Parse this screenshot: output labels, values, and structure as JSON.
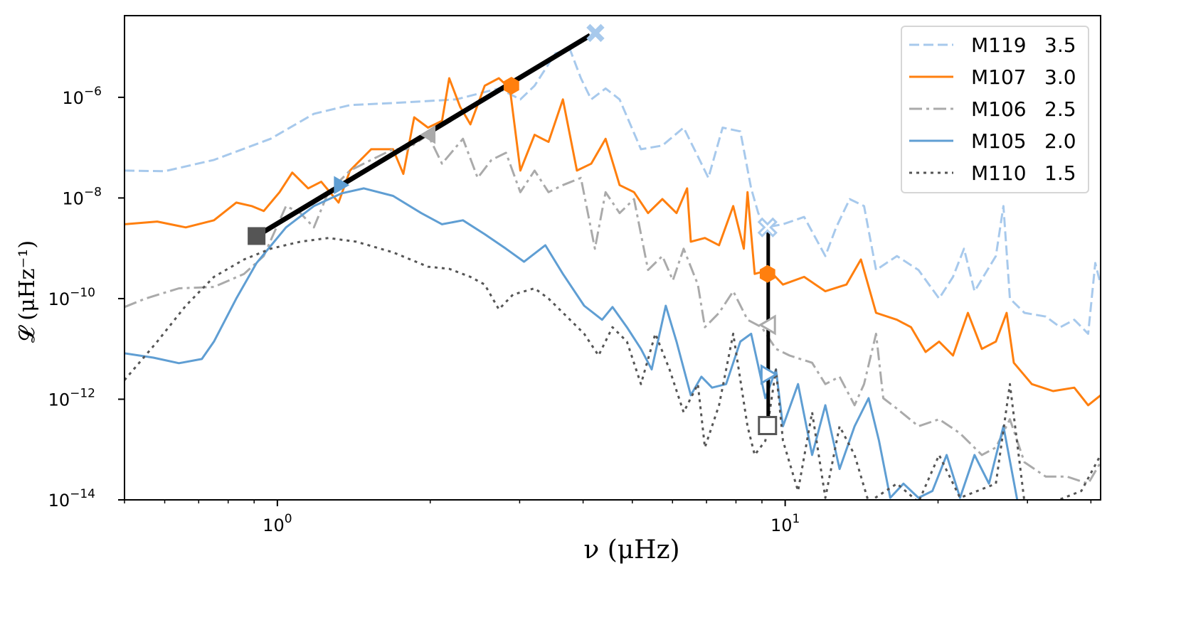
{
  "chart_data": {
    "type": "line",
    "xlabel": "ν (μHz)",
    "ylabel": "𝓛 (μHz⁻¹)",
    "xscale": "log",
    "yscale": "log",
    "xlim": [
      0.5,
      41.8
    ],
    "ylim": [
      1e-14,
      4.2e-05
    ],
    "x_ticks": [
      {
        "value": 1,
        "label": "10",
        "exp": "0"
      },
      {
        "value": 10,
        "label": "10",
        "exp": "1"
      }
    ],
    "y_ticks": [
      {
        "value": 1e-06,
        "label": "10",
        "exp": "−6"
      },
      {
        "value": 1e-08,
        "label": "10",
        "exp": "−8"
      },
      {
        "value": 1e-10,
        "label": "10",
        "exp": "−10"
      },
      {
        "value": 1e-12,
        "label": "10",
        "exp": "−12"
      },
      {
        "value": 1e-14,
        "label": "10",
        "exp": "−14"
      }
    ],
    "grid": false,
    "legend_position": "top-right",
    "series": [
      {
        "name": "M119",
        "value_label": "3.5",
        "color": "#a7c9ec",
        "style": "dashed",
        "x": [
          0.5,
          0.6,
          0.75,
          0.97,
          1.18,
          1.39,
          1.69,
          2.25,
          2.73,
          3.01,
          3.21,
          3.53,
          3.77,
          3.96,
          4.15,
          4.43,
          4.72,
          5.2,
          5.73,
          6.31,
          6.73,
          7.06,
          7.53,
          8.16,
          8.57,
          8.85,
          9.14,
          9.9,
          10.9,
          12.0,
          12.6,
          13.4,
          14.3,
          15.1,
          16.6,
          18.3,
          20.1,
          21.4,
          22.5,
          23.6,
          26.0,
          26.9,
          27.7,
          29.6,
          32.6,
          34.8,
          37.1,
          39.5,
          40.8,
          41.8
        ],
        "y": [
          3.5e-08,
          3.4e-08,
          5.7e-08,
          1.5e-07,
          4.7e-07,
          7e-07,
          7.7e-07,
          9.1e-07,
          1.5e-06,
          9.1e-07,
          1.7e-06,
          7.5e-06,
          8.9e-06,
          2.4e-06,
          9.1e-07,
          1.5e-06,
          9.1e-07,
          9.3e-08,
          1.1e-07,
          2.5e-07,
          6.7e-08,
          2.5e-08,
          2.5e-07,
          2.1e-07,
          1.55e-08,
          5e-09,
          2.6e-09,
          3e-09,
          4.2e-09,
          7e-10,
          2.6e-09,
          9.5e-09,
          6.9e-09,
          3.7e-10,
          7e-10,
          3.7e-10,
          1e-10,
          2.7e-10,
          9.8e-10,
          1.4e-10,
          7e-10,
          6.9e-09,
          1e-10,
          5.2e-11,
          4.4e-11,
          2.7e-11,
          3.8e-11,
          2e-11,
          5.1e-10,
          1.9e-10
        ]
      },
      {
        "name": "M107",
        "value_label": "3.0",
        "color": "#ff7f0e",
        "style": "solid",
        "x": [
          0.5,
          0.58,
          0.66,
          0.75,
          0.83,
          0.89,
          0.94,
          1.01,
          1.07,
          1.15,
          1.22,
          1.32,
          1.39,
          1.53,
          1.69,
          1.77,
          1.86,
          1.98,
          2.11,
          2.18,
          2.29,
          2.4,
          2.56,
          2.73,
          2.87,
          3.01,
          3.21,
          3.42,
          3.65,
          3.89,
          4.15,
          4.43,
          4.72,
          5.04,
          5.37,
          5.73,
          6.11,
          6.41,
          6.52,
          6.95,
          7.41,
          7.9,
          8.29,
          8.43,
          8.71,
          9.29,
          9.9,
          10.9,
          12.0,
          13.2,
          14.1,
          15.1,
          16.6,
          17.7,
          18.9,
          20.1,
          21.4,
          22.9,
          24.4,
          26.0,
          27.3,
          28.2,
          30.6,
          33.7,
          37.1,
          39.5,
          41.8
        ],
        "y": [
          3e-09,
          3.4e-09,
          2.6e-09,
          3.6e-09,
          8.1e-09,
          6.9e-09,
          5.5e-09,
          1.3e-08,
          3.2e-08,
          1.55e-08,
          2.1e-08,
          8.1e-09,
          3.5e-08,
          9.3e-08,
          9.3e-08,
          3e-08,
          4e-07,
          2.5e-07,
          3.4e-07,
          2.4e-06,
          6.5e-07,
          2.9e-07,
          1.7e-06,
          2.4e-06,
          1.5e-06,
          3.5e-08,
          1.8e-07,
          1.3e-07,
          9.1e-07,
          3.5e-08,
          4.8e-08,
          1.5e-07,
          1.8e-08,
          1.3e-08,
          5e-09,
          9.5e-09,
          5e-09,
          1.55e-08,
          1.35e-09,
          1.6e-09,
          1.15e-09,
          6.9e-09,
          9.8e-10,
          1.3e-08,
          3.1e-10,
          3.7e-10,
          1.9e-10,
          2.7e-10,
          1.4e-10,
          1.9e-10,
          6e-10,
          5.2e-11,
          3.8e-11,
          2.7e-11,
          8.7e-12,
          1.4e-11,
          7.4e-12,
          5.2e-11,
          1e-11,
          1.4e-11,
          5.2e-11,
          5.3e-12,
          2e-12,
          1.45e-12,
          1.7e-12,
          7.6e-13,
          1.2e-12
        ]
      },
      {
        "name": "M106",
        "value_label": "2.5",
        "color": "#aaaaaa",
        "style": "dashdot",
        "x": [
          0.5,
          0.55,
          0.64,
          0.75,
          0.86,
          0.94,
          1.04,
          1.11,
          1.18,
          1.26,
          1.39,
          1.53,
          1.69,
          1.8,
          1.98,
          2.11,
          2.32,
          2.48,
          2.64,
          2.82,
          3.01,
          3.21,
          3.42,
          3.65,
          3.96,
          4.22,
          4.43,
          4.72,
          5.04,
          5.37,
          5.73,
          6.01,
          6.31,
          6.73,
          6.95,
          7.41,
          7.9,
          8.43,
          8.99,
          9.59,
          10.2,
          11.3,
          12.0,
          12.8,
          13.7,
          14.3,
          15.1,
          15.6,
          16.6,
          18.3,
          20.1,
          22.1,
          24.4,
          26.0,
          27.7,
          29.6,
          32.6,
          35.9,
          39.5,
          41.8
        ],
        "y": [
          6.8e-11,
          1e-10,
          1.6e-10,
          1.7e-10,
          3.1e-10,
          7e-10,
          6.9e-09,
          5e-09,
          2.6e-09,
          1.3e-08,
          3.5e-08,
          5.7e-08,
          9.3e-08,
          9.3e-08,
          1.8e-07,
          4.8e-08,
          1.5e-07,
          2.5e-08,
          5.7e-08,
          7.9e-08,
          1.3e-08,
          3.5e-08,
          1.3e-08,
          1.8e-08,
          2.5e-08,
          9.8e-10,
          1.3e-08,
          5e-09,
          9.5e-09,
          3.7e-10,
          7e-10,
          2.3e-10,
          9.8e-10,
          1.9e-10,
          2.7e-11,
          5.2e-11,
          1.4e-10,
          3.8e-11,
          2.7e-11,
          1e-11,
          7.4e-12,
          5.3e-12,
          2e-12,
          2.8e-12,
          7.6e-13,
          2e-12,
          2e-11,
          1.05e-12,
          6.5e-13,
          2.9e-13,
          4e-13,
          2.1e-13,
          7.8e-14,
          1.1e-13,
          4e-13,
          5.6e-14,
          2.9e-14,
          2.9e-14,
          2.1e-14,
          5.6e-14
        ]
      },
      {
        "name": "M105",
        "value_label": "2.0",
        "color": "#5f9ed3",
        "style": "solid",
        "x": [
          0.5,
          0.57,
          0.64,
          0.71,
          0.75,
          0.83,
          0.91,
          1.04,
          1.18,
          1.34,
          1.48,
          1.69,
          1.92,
          2.11,
          2.32,
          2.56,
          2.82,
          3.06,
          3.37,
          3.65,
          4.02,
          4.36,
          4.57,
          4.88,
          5.2,
          5.46,
          5.82,
          6.11,
          6.52,
          6.84,
          7.18,
          7.65,
          8.16,
          8.57,
          9.14,
          9.59,
          9.9,
          10.6,
          11.3,
          12.0,
          12.8,
          13.7,
          14.6,
          15.3,
          16.1,
          17.1,
          18.3,
          19.5,
          20.8,
          22.1,
          23.6,
          25.2,
          26.9,
          28.7,
          29.6
        ],
        "y": [
          8.2e-12,
          6.7e-12,
          5.2e-12,
          6.3e-12,
          1.4e-11,
          1e-10,
          5.1e-10,
          2.6e-09,
          6.9e-09,
          1.24e-08,
          1.55e-08,
          1.1e-08,
          5e-09,
          3e-09,
          3.6e-09,
          1.9e-09,
          9.8e-10,
          5.4e-10,
          1.15e-09,
          3.1e-10,
          7.2e-11,
          3.8e-11,
          6.8e-11,
          2.7e-11,
          1e-11,
          3.9e-12,
          7.2e-11,
          1.4e-11,
          1.2e-12,
          2.8e-12,
          1.7e-12,
          2e-12,
          1.4e-11,
          2e-11,
          1.05e-12,
          3.9e-12,
          2.9e-13,
          2e-12,
          7.8e-14,
          7.6e-13,
          4.1e-14,
          2.9e-13,
          1.05e-12,
          1.5e-13,
          1.1e-14,
          2.1e-14,
          1.1e-14,
          1.5e-14,
          7.8e-14,
          1.1e-14,
          7.8e-14,
          2.1e-14,
          2.9e-13,
          9e-15,
          5e-15
        ]
      },
      {
        "name": "M110",
        "value_label": "1.5",
        "color": "#555555",
        "style": "dotted",
        "x": [
          0.5,
          0.58,
          0.66,
          0.75,
          0.86,
          0.97,
          1.11,
          1.26,
          1.43,
          1.69,
          1.98,
          2.18,
          2.4,
          2.56,
          2.73,
          2.91,
          3.21,
          3.42,
          3.77,
          4.02,
          4.29,
          4.57,
          4.88,
          5.2,
          5.55,
          5.92,
          6.31,
          6.73,
          6.95,
          7.41,
          7.9,
          8.43,
          8.71,
          9.14,
          9.59,
          9.9,
          10.6,
          11.3,
          12.0,
          12.8,
          13.7,
          14.6,
          16.6,
          18.3,
          20.1,
          22.1,
          26.0,
          27.7,
          29.6,
          33.7,
          38.3,
          41.8
        ],
        "y": [
          2.4e-12,
          1.4e-11,
          7.2e-11,
          2.7e-10,
          6e-10,
          9.8e-10,
          1.35e-09,
          1.6e-09,
          1.35e-09,
          8.3e-10,
          4.3e-10,
          3.9e-10,
          2.7e-10,
          1.9e-10,
          6.1e-11,
          1.2e-10,
          1.6e-10,
          1e-10,
          3.8e-11,
          2e-11,
          7.4e-12,
          2.7e-11,
          1.4e-11,
          2e-12,
          2e-11,
          3.9e-12,
          5.5e-13,
          2e-12,
          1.1e-13,
          7.6e-13,
          2e-11,
          2.9e-13,
          7.8e-14,
          1.5e-13,
          3.9e-12,
          1.5e-13,
          1.5e-14,
          5.5e-13,
          1.1e-14,
          2.9e-13,
          7.8e-14,
          9e-15,
          2.1e-14,
          9e-15,
          7.8e-14,
          1.1e-14,
          2.1e-14,
          2e-12,
          9e-15,
          9e-15,
          1.5e-14,
          7.8e-14
        ]
      }
    ],
    "reference_lines": [
      {
        "color": "#000000",
        "x": [
          0.91,
          4.13
        ],
        "y": [
          1.75e-09,
          1.7e-05
        ]
      },
      {
        "color": "#000000",
        "x": [
          9.26,
          9.26
        ],
        "y": [
          2.2e-09,
          3e-13
        ]
      }
    ],
    "markers": [
      {
        "series": "M110",
        "shape": "square",
        "filled": true,
        "color": "#555555",
        "x": 0.91,
        "y": 1.75e-09
      },
      {
        "series": "M105",
        "shape": "triangle-right",
        "filled": true,
        "color": "#5f9ed3",
        "x": 1.33,
        "y": 1.8e-08
      },
      {
        "series": "M106",
        "shape": "triangle-left",
        "filled": true,
        "color": "#aaaaaa",
        "x": 1.99,
        "y": 1.8e-07
      },
      {
        "series": "M107",
        "shape": "hexagon",
        "filled": true,
        "color": "#ff7f0e",
        "x": 2.89,
        "y": 1.7e-06
      },
      {
        "series": "M119",
        "shape": "x",
        "filled": true,
        "color": "#a7c9ec",
        "x": 4.23,
        "y": 1.9e-05
      },
      {
        "series": "M119",
        "shape": "x",
        "filled": false,
        "color": "#a7c9ec",
        "x": 9.23,
        "y": 2.6e-09
      },
      {
        "series": "M107",
        "shape": "hexagon",
        "filled": true,
        "color": "#ff7f0e",
        "x": 9.23,
        "y": 3.1e-10
      },
      {
        "series": "M106",
        "shape": "triangle-left",
        "filled": false,
        "color": "#aaaaaa",
        "x": 9.29,
        "y": 3e-11
      },
      {
        "series": "M105",
        "shape": "triangle-right",
        "filled": false,
        "color": "#5f9ed3",
        "x": 9.23,
        "y": 3.1e-12
      },
      {
        "series": "M110",
        "shape": "square",
        "filled": false,
        "color": "#555555",
        "x": 9.23,
        "y": 3e-13
      }
    ]
  }
}
